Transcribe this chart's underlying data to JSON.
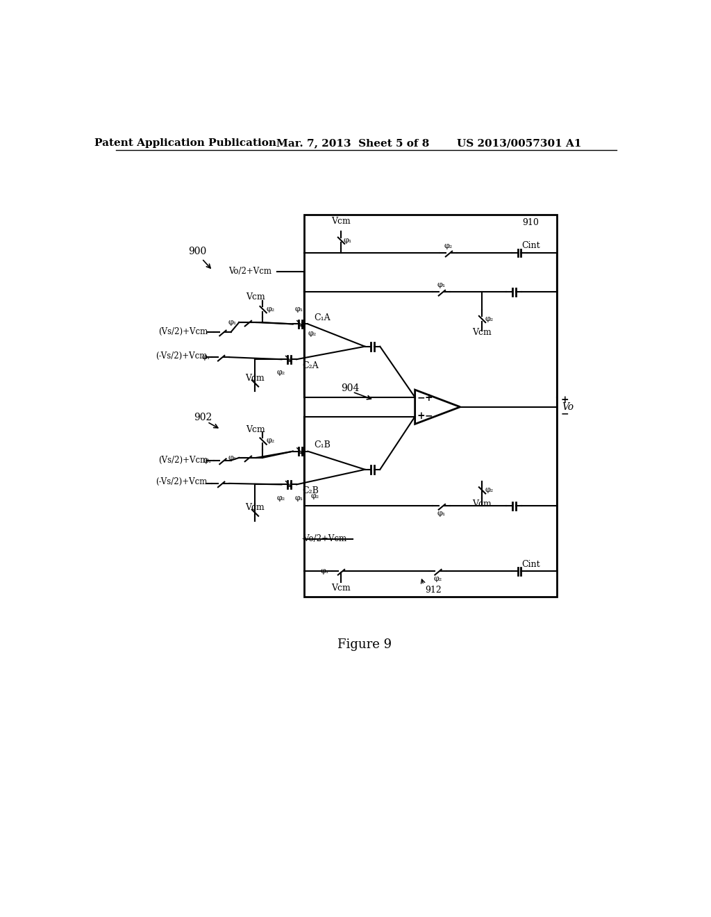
{
  "header_left": "Patent Application Publication",
  "header_center": "Mar. 7, 2013  Sheet 5 of 8",
  "header_right": "US 2013/0057301 A1",
  "figure_label": "Figure 9",
  "bg_color": "#ffffff",
  "line_color": "#000000"
}
